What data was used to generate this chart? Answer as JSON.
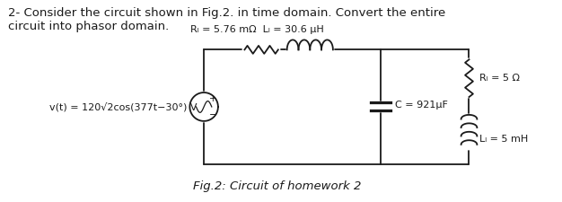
{
  "title_text": "2- Consider the circuit shown in Fig.2. in time domain. Convert the entire\ncircuit into phasor domain.",
  "caption": "Fig.2: Circuit of homework 2",
  "source_label": "v(t) = 120√2cos(377t−30°) V",
  "top_label_r": "Rₗ = 5.76 mΩ",
  "top_label_l": "Lₗ = 30.6 μH",
  "cap_label": "C = 921μF",
  "rl_label": "Rₗ = 5 Ω",
  "ll_label": "Lₗ = 5 mH",
  "bg_color": "#ffffff",
  "line_color": "#1a1a1a",
  "text_color": "#1a1a1a",
  "font_size_title": 9.5,
  "font_size_labels": 8.0,
  "font_size_caption": 9.5
}
